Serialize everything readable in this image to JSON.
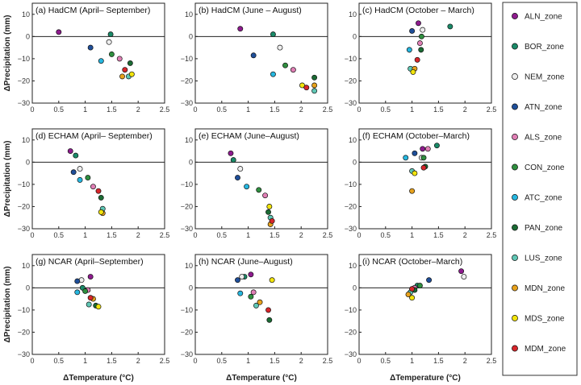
{
  "figure": {
    "ylabel": "ΔPrecipitation (mm)",
    "xlabel": "ΔTemperature (°C)",
    "x_ticks": [
      "0",
      "0.5",
      "1",
      "1.5",
      "2",
      "2.5"
    ],
    "y_ticks": [
      "10",
      "0",
      "−10",
      "−20",
      "−30"
    ]
  },
  "colors": {
    "ALN_zone": "#8e1b8e",
    "BOR_zone": "#1a8a68",
    "NEM_zone": "#eeeeee",
    "ATN_zone": "#1f4f9a",
    "ALS_zone": "#e07fb5",
    "CON_zone": "#2f8f3f",
    "ATC_zone": "#26b7e0",
    "PAN_zone": "#1b6b34",
    "LUS_zone": "#5fc7b5",
    "MDN_zone": "#e8a21c",
    "MDS_zone": "#f2e40c",
    "MDM_zone": "#d7262b"
  },
  "legend": [
    "ALN_zone",
    "BOR_zone",
    "NEM_zone",
    "ATN_zone",
    "ALS_zone",
    "CON_zone",
    "ATC_zone",
    "PAN_zone",
    "LUS_zone",
    "MDN_zone",
    "MDS_zone",
    "MDM_zone"
  ],
  "chart_data": [
    {
      "type": "scatter",
      "title": "(a)  HadCM  (April– September)",
      "xlim": [
        0,
        2.5
      ],
      "ylim": [
        -30,
        15
      ],
      "grid": false,
      "series": [
        {
          "name": "ALN_zone",
          "x": [
            0.5
          ],
          "y": [
            2
          ]
        },
        {
          "name": "BOR_zone",
          "x": [
            1.48
          ],
          "y": [
            1
          ]
        },
        {
          "name": "NEM_zone",
          "x": [
            1.45
          ],
          "y": [
            -2.5
          ]
        },
        {
          "name": "ATN_zone",
          "x": [
            1.1
          ],
          "y": [
            -5
          ]
        },
        {
          "name": "ALS_zone",
          "x": [
            1.65
          ],
          "y": [
            -10
          ]
        },
        {
          "name": "CON_zone",
          "x": [
            1.5
          ],
          "y": [
            -8
          ]
        },
        {
          "name": "ATC_zone",
          "x": [
            1.3
          ],
          "y": [
            -11
          ]
        },
        {
          "name": "PAN_zone",
          "x": [
            1.85
          ],
          "y": [
            -12
          ]
        },
        {
          "name": "LUS_zone",
          "x": [
            1.82
          ],
          "y": [
            -18
          ]
        },
        {
          "name": "MDN_zone",
          "x": [
            1.7
          ],
          "y": [
            -18
          ]
        },
        {
          "name": "MDS_zone",
          "x": [
            1.88
          ],
          "y": [
            -17
          ]
        },
        {
          "name": "MDM_zone",
          "x": [
            1.75
          ],
          "y": [
            -15
          ]
        }
      ]
    },
    {
      "type": "scatter",
      "title": "(b)  HadCM  (June – August)",
      "xlim": [
        0,
        2.5
      ],
      "ylim": [
        -30,
        15
      ],
      "grid": false,
      "series": [
        {
          "name": "ALN_zone",
          "x": [
            0.85
          ],
          "y": [
            3.5
          ]
        },
        {
          "name": "BOR_zone",
          "x": [
            1.47
          ],
          "y": [
            1
          ]
        },
        {
          "name": "NEM_zone",
          "x": [
            1.6
          ],
          "y": [
            -5
          ]
        },
        {
          "name": "ATN_zone",
          "x": [
            1.1
          ],
          "y": [
            -8.5
          ]
        },
        {
          "name": "ALS_zone",
          "x": [
            1.85
          ],
          "y": [
            -15
          ]
        },
        {
          "name": "CON_zone",
          "x": [
            1.7
          ],
          "y": [
            -13
          ]
        },
        {
          "name": "ATC_zone",
          "x": [
            1.47
          ],
          "y": [
            -17
          ]
        },
        {
          "name": "PAN_zone",
          "x": [
            2.25
          ],
          "y": [
            -18.5
          ]
        },
        {
          "name": "LUS_zone",
          "x": [
            2.25
          ],
          "y": [
            -24.5
          ]
        },
        {
          "name": "MDN_zone",
          "x": [
            2.25
          ],
          "y": [
            -22
          ]
        },
        {
          "name": "MDS_zone",
          "x": [
            2.02
          ],
          "y": [
            -22
          ]
        },
        {
          "name": "MDM_zone",
          "x": [
            2.1
          ],
          "y": [
            -23
          ]
        }
      ]
    },
    {
      "type": "scatter",
      "title": "(c)  HadCM  (October – March)",
      "xlim": [
        0,
        2.5
      ],
      "ylim": [
        -30,
        15
      ],
      "grid": false,
      "series": [
        {
          "name": "ALN_zone",
          "x": [
            1.12
          ],
          "y": [
            6
          ]
        },
        {
          "name": "BOR_zone",
          "x": [
            1.72
          ],
          "y": [
            4.5
          ]
        },
        {
          "name": "NEM_zone",
          "x": [
            1.2
          ],
          "y": [
            3
          ]
        },
        {
          "name": "ATN_zone",
          "x": [
            1.0
          ],
          "y": [
            2.5
          ]
        },
        {
          "name": "ALS_zone",
          "x": [
            1.15
          ],
          "y": [
            -3
          ]
        },
        {
          "name": "CON_zone",
          "x": [
            1.18
          ],
          "y": [
            0
          ]
        },
        {
          "name": "ATC_zone",
          "x": [
            0.95
          ],
          "y": [
            -6
          ]
        },
        {
          "name": "PAN_zone",
          "x": [
            1.17
          ],
          "y": [
            -6
          ]
        },
        {
          "name": "LUS_zone",
          "x": [
            0.97
          ],
          "y": [
            -14.5
          ]
        },
        {
          "name": "MDN_zone",
          "x": [
            1.05
          ],
          "y": [
            -14.5
          ]
        },
        {
          "name": "MDS_zone",
          "x": [
            1.02
          ],
          "y": [
            -16
          ]
        },
        {
          "name": "MDM_zone",
          "x": [
            1.1
          ],
          "y": [
            -10.5
          ]
        }
      ]
    },
    {
      "type": "scatter",
      "title": "(d)  ECHAM  (April– September)",
      "xlim": [
        0,
        2.5
      ],
      "ylim": [
        -30,
        15
      ],
      "grid": false,
      "series": [
        {
          "name": "ALN_zone",
          "x": [
            0.72
          ],
          "y": [
            5
          ]
        },
        {
          "name": "BOR_zone",
          "x": [
            0.82
          ],
          "y": [
            3
          ]
        },
        {
          "name": "NEM_zone",
          "x": [
            0.9
          ],
          "y": [
            -3
          ]
        },
        {
          "name": "ATN_zone",
          "x": [
            0.78
          ],
          "y": [
            -4.5
          ]
        },
        {
          "name": "ALS_zone",
          "x": [
            1.15
          ],
          "y": [
            -11
          ]
        },
        {
          "name": "CON_zone",
          "x": [
            1.05
          ],
          "y": [
            -7
          ]
        },
        {
          "name": "ATC_zone",
          "x": [
            0.9
          ],
          "y": [
            -8
          ]
        },
        {
          "name": "PAN_zone",
          "x": [
            1.3
          ],
          "y": [
            -16
          ]
        },
        {
          "name": "LUS_zone",
          "x": [
            1.33
          ],
          "y": [
            -21
          ]
        },
        {
          "name": "MDN_zone",
          "x": [
            1.33
          ],
          "y": [
            -23
          ]
        },
        {
          "name": "MDS_zone",
          "x": [
            1.3
          ],
          "y": [
            -22.5
          ]
        },
        {
          "name": "MDM_zone",
          "x": [
            1.25
          ],
          "y": [
            -13
          ]
        }
      ]
    },
    {
      "type": "scatter",
      "title": "(e)  ECHAM  (June–August)",
      "xlim": [
        0,
        2.5
      ],
      "ylim": [
        -30,
        15
      ],
      "grid": false,
      "series": [
        {
          "name": "ALN_zone",
          "x": [
            0.67
          ],
          "y": [
            4
          ]
        },
        {
          "name": "BOR_zone",
          "x": [
            0.72
          ],
          "y": [
            1
          ]
        },
        {
          "name": "NEM_zone",
          "x": [
            0.85
          ],
          "y": [
            -3
          ]
        },
        {
          "name": "ATN_zone",
          "x": [
            0.8
          ],
          "y": [
            -7
          ]
        },
        {
          "name": "ALS_zone",
          "x": [
            1.32
          ],
          "y": [
            -15
          ]
        },
        {
          "name": "CON_zone",
          "x": [
            1.2
          ],
          "y": [
            -12.5
          ]
        },
        {
          "name": "ATC_zone",
          "x": [
            0.97
          ],
          "y": [
            -11
          ]
        },
        {
          "name": "PAN_zone",
          "x": [
            1.38
          ],
          "y": [
            -22.5
          ]
        },
        {
          "name": "LUS_zone",
          "x": [
            1.42
          ],
          "y": [
            -25
          ]
        },
        {
          "name": "MDN_zone",
          "x": [
            1.42
          ],
          "y": [
            -28
          ]
        },
        {
          "name": "MDS_zone",
          "x": [
            1.4
          ],
          "y": [
            -20
          ]
        },
        {
          "name": "MDM_zone",
          "x": [
            1.45
          ],
          "y": [
            -26.5
          ]
        }
      ]
    },
    {
      "type": "scatter",
      "title": "(f)  ECHAM  (October–March)",
      "xlim": [
        0,
        2.5
      ],
      "ylim": [
        -30,
        15
      ],
      "grid": false,
      "series": [
        {
          "name": "ALN_zone",
          "x": [
            1.2
          ],
          "y": [
            6
          ]
        },
        {
          "name": "BOR_zone",
          "x": [
            1.47
          ],
          "y": [
            7.5
          ]
        },
        {
          "name": "NEM_zone",
          "x": [
            1.18
          ],
          "y": [
            2
          ]
        },
        {
          "name": "ATN_zone",
          "x": [
            1.05
          ],
          "y": [
            4
          ]
        },
        {
          "name": "ALS_zone",
          "x": [
            1.3
          ],
          "y": [
            6
          ]
        },
        {
          "name": "CON_zone",
          "x": [
            1.22
          ],
          "y": [
            2
          ]
        },
        {
          "name": "ATC_zone",
          "x": [
            0.88
          ],
          "y": [
            2
          ]
        },
        {
          "name": "PAN_zone",
          "x": [
            1.25
          ],
          "y": [
            -2
          ]
        },
        {
          "name": "LUS_zone",
          "x": [
            1.0
          ],
          "y": [
            -4
          ]
        },
        {
          "name": "MDN_zone",
          "x": [
            1.0
          ],
          "y": [
            -13
          ]
        },
        {
          "name": "MDS_zone",
          "x": [
            1.05
          ],
          "y": [
            -5
          ]
        },
        {
          "name": "MDM_zone",
          "x": [
            1.22
          ],
          "y": [
            -2.5
          ]
        }
      ]
    },
    {
      "type": "scatter",
      "title": "(g)  NCAR  (April–September)",
      "xlim": [
        0,
        2.5
      ],
      "ylim": [
        -30,
        15
      ],
      "grid": false,
      "series": [
        {
          "name": "ALN_zone",
          "x": [
            1.1
          ],
          "y": [
            5
          ]
        },
        {
          "name": "BOR_zone",
          "x": [
            0.95
          ],
          "y": [
            0
          ]
        },
        {
          "name": "NEM_zone",
          "x": [
            0.93
          ],
          "y": [
            3.5
          ]
        },
        {
          "name": "ATN_zone",
          "x": [
            0.85
          ],
          "y": [
            3
          ]
        },
        {
          "name": "ALS_zone",
          "x": [
            1.05
          ],
          "y": [
            -1
          ]
        },
        {
          "name": "CON_zone",
          "x": [
            1.0
          ],
          "y": [
            -1.5
          ]
        },
        {
          "name": "ATC_zone",
          "x": [
            0.85
          ],
          "y": [
            -2
          ]
        },
        {
          "name": "PAN_zone",
          "x": [
            1.2
          ],
          "y": [
            -8
          ]
        },
        {
          "name": "LUS_zone",
          "x": [
            1.07
          ],
          "y": [
            -7.5
          ]
        },
        {
          "name": "MDN_zone",
          "x": [
            1.15
          ],
          "y": [
            -5
          ]
        },
        {
          "name": "MDS_zone",
          "x": [
            1.25
          ],
          "y": [
            -8.5
          ]
        },
        {
          "name": "MDM_zone",
          "x": [
            1.1
          ],
          "y": [
            -4.5
          ]
        }
      ]
    },
    {
      "type": "scatter",
      "title": "(h)  NCAR  (June–August)",
      "xlim": [
        0,
        2.5
      ],
      "ylim": [
        -30,
        15
      ],
      "grid": false,
      "series": [
        {
          "name": "ALN_zone",
          "x": [
            1.05
          ],
          "y": [
            6
          ]
        },
        {
          "name": "BOR_zone",
          "x": [
            0.93
          ],
          "y": [
            5
          ]
        },
        {
          "name": "NEM_zone",
          "x": [
            0.88
          ],
          "y": [
            5
          ]
        },
        {
          "name": "ATN_zone",
          "x": [
            0.8
          ],
          "y": [
            3.5
          ]
        },
        {
          "name": "ALS_zone",
          "x": [
            1.1
          ],
          "y": [
            -2
          ]
        },
        {
          "name": "CON_zone",
          "x": [
            1.05
          ],
          "y": [
            -4
          ]
        },
        {
          "name": "ATC_zone",
          "x": [
            0.85
          ],
          "y": [
            -2.5
          ]
        },
        {
          "name": "PAN_zone",
          "x": [
            1.4
          ],
          "y": [
            -14.5
          ]
        },
        {
          "name": "LUS_zone",
          "x": [
            1.15
          ],
          "y": [
            -8
          ]
        },
        {
          "name": "MDN_zone",
          "x": [
            1.22
          ],
          "y": [
            -6.5
          ]
        },
        {
          "name": "MDS_zone",
          "x": [
            1.45
          ],
          "y": [
            3.5
          ]
        },
        {
          "name": "MDM_zone",
          "x": [
            1.38
          ],
          "y": [
            -10
          ]
        }
      ]
    },
    {
      "type": "scatter",
      "title": "(i)  NCAR  (October–March)",
      "xlim": [
        0,
        2.5
      ],
      "ylim": [
        -30,
        15
      ],
      "grid": false,
      "series": [
        {
          "name": "ALN_zone",
          "x": [
            1.93
          ],
          "y": [
            7.5
          ]
        },
        {
          "name": "BOR_zone",
          "x": [
            1.1
          ],
          "y": [
            1
          ]
        },
        {
          "name": "NEM_zone",
          "x": [
            1.98
          ],
          "y": [
            5
          ]
        },
        {
          "name": "ATN_zone",
          "x": [
            1.32
          ],
          "y": [
            3.5
          ]
        },
        {
          "name": "ALS_zone",
          "x": [
            1.05
          ],
          "y": [
            0
          ]
        },
        {
          "name": "CON_zone",
          "x": [
            1.15
          ],
          "y": [
            1
          ]
        },
        {
          "name": "ATC_zone",
          "x": [
            1.0
          ],
          "y": [
            -1
          ]
        },
        {
          "name": "PAN_zone",
          "x": [
            1.05
          ],
          "y": [
            -1
          ]
        },
        {
          "name": "LUS_zone",
          "x": [
            0.97
          ],
          "y": [
            -2
          ]
        },
        {
          "name": "MDN_zone",
          "x": [
            0.93
          ],
          "y": [
            -3
          ]
        },
        {
          "name": "MDS_zone",
          "x": [
            1.0
          ],
          "y": [
            -4.5
          ]
        },
        {
          "name": "MDM_zone",
          "x": [
            1.0
          ],
          "y": [
            -0.5
          ]
        }
      ]
    }
  ]
}
